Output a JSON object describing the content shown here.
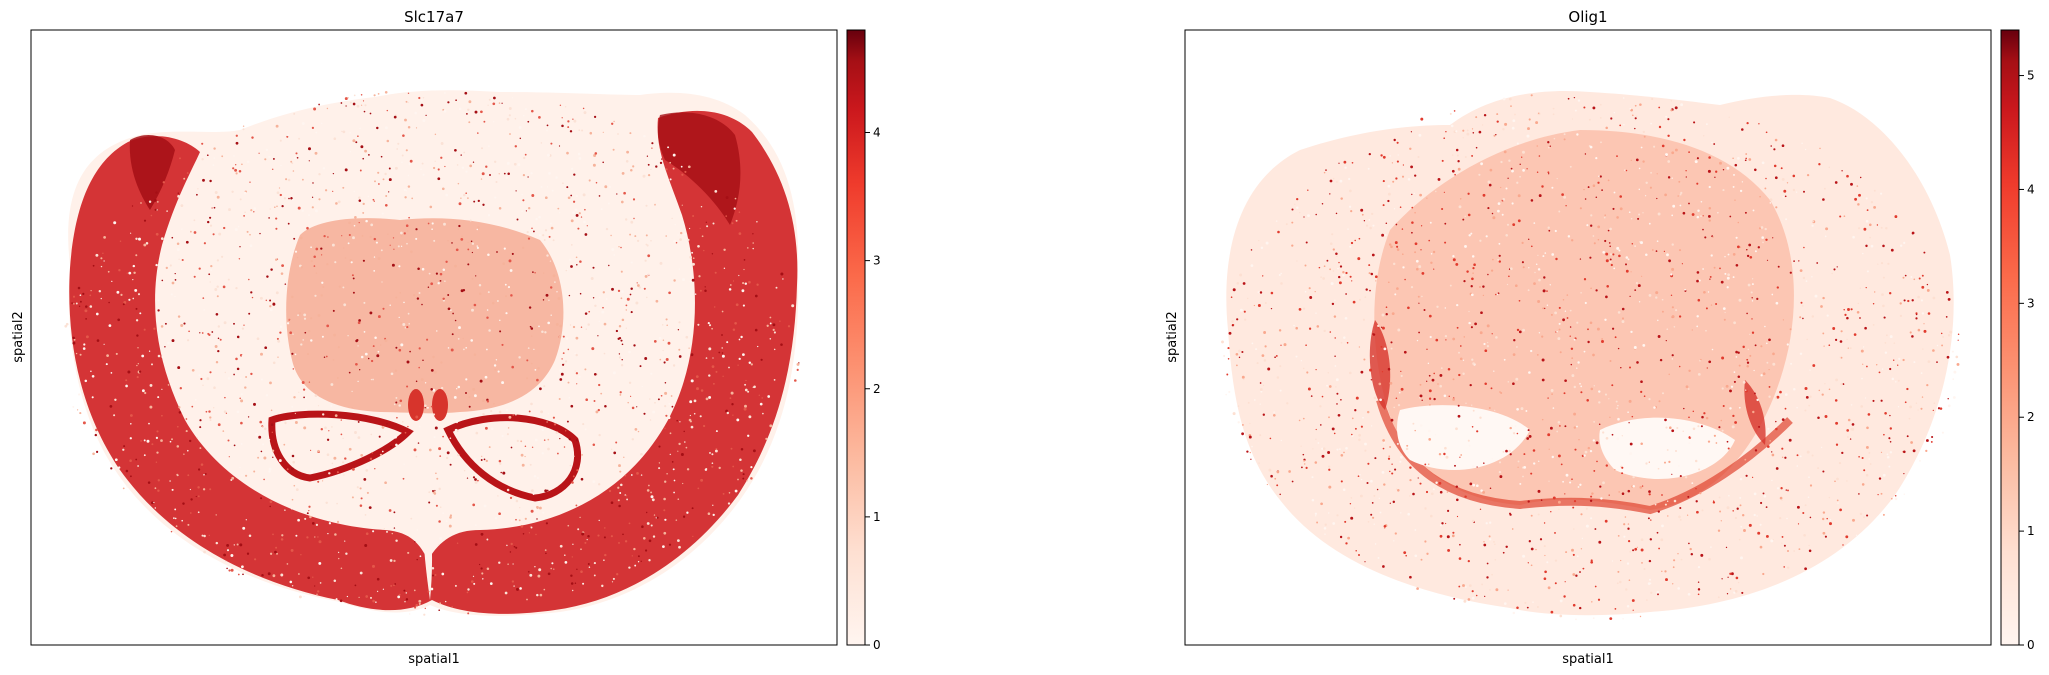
{
  "chart_data": [
    {
      "type": "scatter",
      "title": "Slc17a7",
      "xlabel": "spatial1",
      "ylabel": "spatial2",
      "x_ticks_shown": false,
      "y_ticks_shown": false,
      "grid": false,
      "colormap": [
        "#fff5f0",
        "#fcbba1",
        "#fc9272",
        "#fb6a4a",
        "#ef3b2c",
        "#cb181d",
        "#a50f15",
        "#67000d"
      ],
      "colorbar": {
        "min": 0,
        "max": 4.8,
        "ticks": [
          0,
          1,
          2,
          3,
          4
        ],
        "tick_labels": [
          "0",
          "1",
          "2",
          "3",
          "4"
        ],
        "placement": "right"
      }
    },
    {
      "type": "scatter",
      "title": "Olig1",
      "xlabel": "spatial1",
      "ylabel": "spatial2",
      "x_ticks_shown": false,
      "y_ticks_shown": false,
      "grid": false,
      "colormap": [
        "#fff5f0",
        "#fcbba1",
        "#fc9272",
        "#fb6a4a",
        "#ef3b2c",
        "#cb181d",
        "#a50f15",
        "#67000d"
      ],
      "colorbar": {
        "min": 0,
        "max": 5.4,
        "ticks": [
          0,
          1,
          2,
          3,
          4,
          5
        ],
        "tick_labels": [
          "0",
          "1",
          "2",
          "3",
          "4",
          "5"
        ],
        "placement": "right"
      }
    }
  ]
}
